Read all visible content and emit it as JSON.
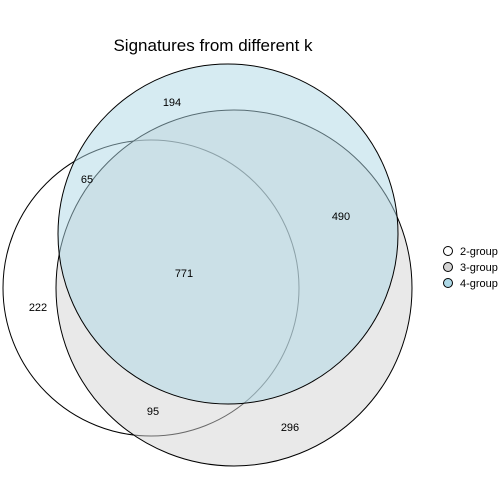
{
  "title": "Signatures from different k",
  "sets": [
    {
      "name": "2-group",
      "fill": "#ffffff"
    },
    {
      "name": "3-group",
      "fill": "#d3d3d3"
    },
    {
      "name": "4-group",
      "fill": "#add8e6"
    }
  ],
  "regions": {
    "only_2": "222",
    "only_3": "296",
    "only_4": "194",
    "2_and_4": "65",
    "3_and_4": "490",
    "2_and_3": "95",
    "all_three": "771"
  },
  "legend": {
    "placement": "right"
  }
}
